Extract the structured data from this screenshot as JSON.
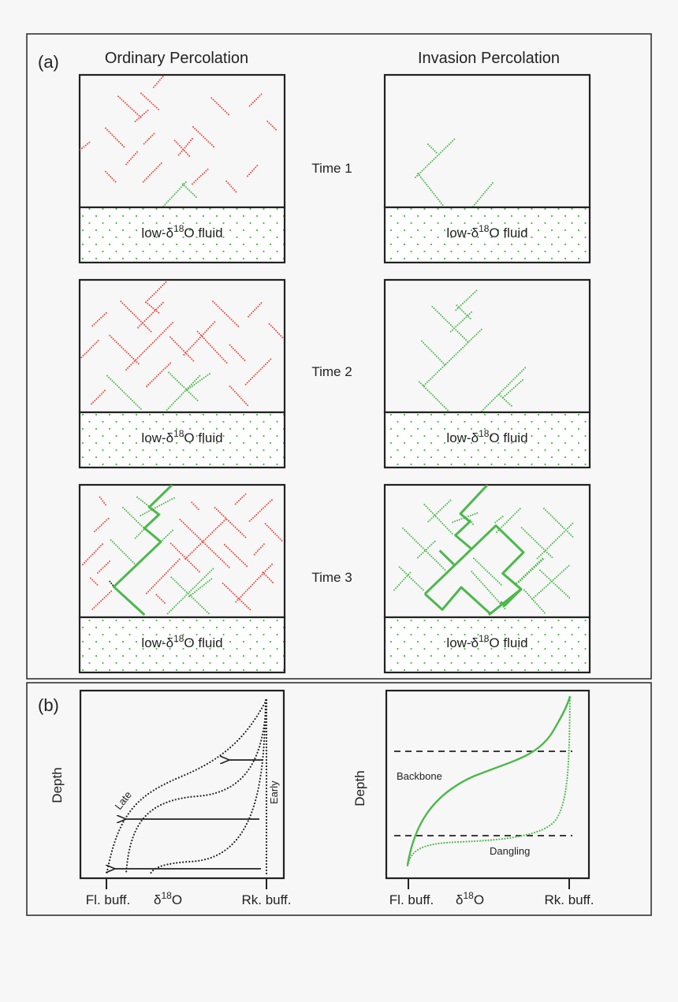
{
  "panel_a": {
    "label": "(a)",
    "left_title": "Ordinary Percolation",
    "right_title": "Invasion Percolation",
    "times": [
      "Time 1",
      "Time 2",
      "Time 3"
    ],
    "fluid_label": {
      "prefix": "low-δ",
      "sup": "18",
      "suffix": "O fluid"
    }
  },
  "panel_b": {
    "label": "(b)",
    "left_plot": {
      "ylabel": "Depth",
      "x_tick_left": "Fl. buff.",
      "x_tick_right": "Rk. buff.",
      "xlabel": {
        "prefix": "δ",
        "sup": "18",
        "suffix": "O"
      },
      "curve_labels": {
        "late": "Late",
        "early": "Early"
      }
    },
    "right_plot": {
      "ylabel": "Depth",
      "x_tick_left": "Fl. buff.",
      "x_tick_right": "Rk. buff.",
      "xlabel": {
        "prefix": "δ",
        "sup": "18",
        "suffix": "O"
      },
      "curve_labels": {
        "backbone": "Backbone",
        "dangling": "Dangling"
      }
    }
  },
  "colors": {
    "unconnected_fracture": "#f0463c",
    "connected_fracture": "#4cb84c",
    "fluid_dots": "#4cb84c",
    "outline": "#222222"
  }
}
